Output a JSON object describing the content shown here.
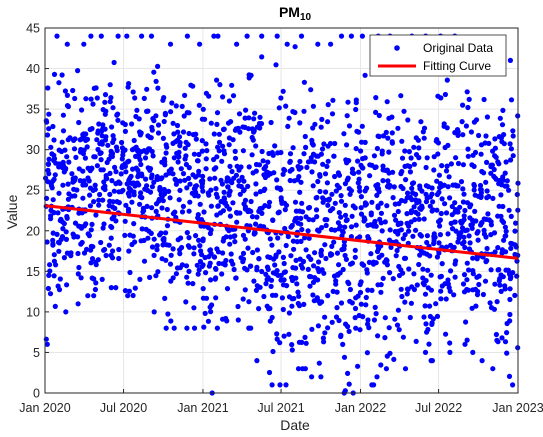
{
  "chart_data": {
    "type": "scatter",
    "title_main": "PM",
    "title_sub": "10",
    "xlabel": "Date",
    "ylabel": "Value",
    "xlim": [
      "2020-01-01",
      "2023-01-01"
    ],
    "ylim": [
      0,
      45
    ],
    "x_ticks": [
      {
        "date": "2020-01-01",
        "label": "Jan 2020"
      },
      {
        "date": "2020-07-01",
        "label": "Jul 2020"
      },
      {
        "date": "2021-01-01",
        "label": "Jan 2021"
      },
      {
        "date": "2021-07-01",
        "label": "Jul 2021"
      },
      {
        "date": "2022-01-01",
        "label": "Jan 2022"
      },
      {
        "date": "2022-07-01",
        "label": "Jul 2022"
      },
      {
        "date": "2023-01-01",
        "label": "Jan 2023"
      }
    ],
    "y_ticks": [
      0,
      5,
      10,
      15,
      20,
      25,
      30,
      35,
      40,
      45
    ],
    "grid": true,
    "legend_position": "top-right",
    "series": [
      {
        "name": "Original Data",
        "kind": "scatter",
        "color": "#0000ff",
        "summary": {
          "monthly_ranges": [
            {
              "month": "2020-01",
              "low": 6,
              "high": 44
            },
            {
              "month": "2020-02",
              "low": 10,
              "high": 43
            },
            {
              "month": "2020-03",
              "low": 11,
              "high": 43
            },
            {
              "month": "2020-04",
              "low": 12,
              "high": 44
            },
            {
              "month": "2020-05",
              "low": 14,
              "high": 44
            },
            {
              "month": "2020-06",
              "low": 13,
              "high": 44
            },
            {
              "month": "2020-07",
              "low": 12,
              "high": 44
            },
            {
              "month": "2020-08",
              "low": 14,
              "high": 44
            },
            {
              "month": "2020-09",
              "low": 10,
              "high": 44
            },
            {
              "month": "2020-10",
              "low": 8,
              "high": 43
            },
            {
              "month": "2020-11",
              "low": 8,
              "high": 44
            },
            {
              "month": "2020-12",
              "low": 8,
              "high": 43
            },
            {
              "month": "2021-01",
              "low": 0,
              "high": 44
            },
            {
              "month": "2021-02",
              "low": 8,
              "high": 44
            },
            {
              "month": "2021-03",
              "low": 9,
              "high": 43
            },
            {
              "month": "2021-04",
              "low": 8,
              "high": 44
            },
            {
              "month": "2021-05",
              "low": 4,
              "high": 44
            },
            {
              "month": "2021-06",
              "low": 1,
              "high": 44
            },
            {
              "month": "2021-07",
              "low": 1,
              "high": 43
            },
            {
              "month": "2021-08",
              "low": 3,
              "high": 44
            },
            {
              "month": "2021-09",
              "low": 2,
              "high": 43
            },
            {
              "month": "2021-10",
              "low": 2,
              "high": 43
            },
            {
              "month": "2021-11",
              "low": 0,
              "high": 44
            },
            {
              "month": "2021-12",
              "low": 0,
              "high": 44
            },
            {
              "month": "2022-01",
              "low": 1,
              "high": 44
            },
            {
              "month": "2022-02",
              "low": 2,
              "high": 44
            },
            {
              "month": "2022-03",
              "low": 3,
              "high": 44
            },
            {
              "month": "2022-04",
              "low": 3,
              "high": 44
            },
            {
              "month": "2022-05",
              "low": 5,
              "high": 43
            },
            {
              "month": "2022-06",
              "low": 4,
              "high": 44
            },
            {
              "month": "2022-07",
              "low": 5,
              "high": 44
            },
            {
              "month": "2022-08",
              "low": 6,
              "high": 44
            },
            {
              "month": "2022-09",
              "low": 5,
              "high": 43
            },
            {
              "month": "2022-10",
              "low": 4,
              "high": 43
            },
            {
              "month": "2022-11",
              "low": 3,
              "high": 43
            },
            {
              "month": "2022-12",
              "low": 1,
              "high": 41
            }
          ]
        }
      },
      {
        "name": "Fitting Curve",
        "kind": "line",
        "color": "#ff0000",
        "x": [
          "2020-01-01",
          "2023-01-01"
        ],
        "y": [
          23.1,
          16.6
        ]
      }
    ]
  }
}
